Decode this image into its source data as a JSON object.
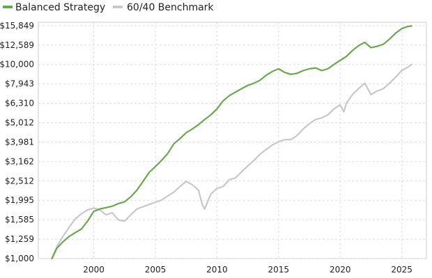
{
  "chart_data": {
    "type": "line",
    "title": "",
    "xlabel": "",
    "ylabel": "",
    "y_scale": "log",
    "ylim": [
      1000,
      16500
    ],
    "xlim": [
      1995.5,
      2027.0
    ],
    "grid": true,
    "legend_position": "top-left",
    "x_ticks": [
      2000,
      2005,
      2010,
      2015,
      2020,
      2025
    ],
    "x_tick_labels": [
      "2000",
      "2005",
      "2010",
      "2015",
      "2020",
      "2025"
    ],
    "y_ticks": [
      1000,
      1259,
      1585,
      1995,
      2512,
      3162,
      3981,
      5012,
      6310,
      7943,
      10000,
      12589,
      15849
    ],
    "y_tick_labels": [
      "$1,000",
      "$1,259",
      "$1,585",
      "$1,995",
      "$2,512",
      "$3,162",
      "$3,981",
      "$5,012",
      "$6,310",
      "$7,943",
      "$10,000",
      "$12,589",
      "$15,849"
    ],
    "series": [
      {
        "name": "Balanced Strategy",
        "color": "#6aa84f",
        "x": [
          1996.6,
          1997.0,
          1997.5,
          1998.0,
          1998.5,
          1999.0,
          1999.5,
          2000.0,
          2000.5,
          2001.0,
          2001.5,
          2002.0,
          2002.5,
          2003.0,
          2003.5,
          2004.0,
          2004.5,
          2005.0,
          2005.5,
          2006.0,
          2006.5,
          2007.0,
          2007.5,
          2008.0,
          2008.5,
          2009.0,
          2009.5,
          2010.0,
          2010.5,
          2011.0,
          2011.5,
          2012.0,
          2012.5,
          2013.0,
          2013.5,
          2014.0,
          2014.5,
          2015.0,
          2015.5,
          2016.0,
          2016.5,
          2017.0,
          2017.5,
          2018.0,
          2018.5,
          2019.0,
          2019.5,
          2020.0,
          2020.5,
          2021.0,
          2021.5,
          2022.0,
          2022.5,
          2023.0,
          2023.5,
          2024.0,
          2024.5,
          2025.0,
          2025.5,
          2025.8
        ],
        "values": [
          1000,
          1130,
          1220,
          1300,
          1360,
          1420,
          1560,
          1750,
          1800,
          1830,
          1860,
          1920,
          1960,
          2080,
          2250,
          2500,
          2780,
          2980,
          3200,
          3480,
          3900,
          4150,
          4450,
          4650,
          4900,
          5200,
          5500,
          5900,
          6500,
          6900,
          7200,
          7500,
          7800,
          8000,
          8300,
          8800,
          9200,
          9500,
          9100,
          8900,
          9000,
          9300,
          9500,
          9600,
          9300,
          9500,
          10000,
          10500,
          11000,
          11800,
          12500,
          13000,
          12200,
          12400,
          12700,
          13500,
          14500,
          15300,
          15700,
          15800
        ]
      },
      {
        "name": "60/40 Benchmark",
        "color": "#c8c8c8",
        "x": [
          1996.6,
          1997.0,
          1997.5,
          1998.0,
          1998.5,
          1999.0,
          1999.5,
          2000.0,
          2000.5,
          2001.0,
          2001.5,
          2002.0,
          2002.5,
          2003.0,
          2003.5,
          2004.0,
          2004.5,
          2005.0,
          2005.5,
          2006.0,
          2006.5,
          2007.0,
          2007.5,
          2008.0,
          2008.5,
          2008.8,
          2009.0,
          2009.3,
          2009.5,
          2010.0,
          2010.5,
          2011.0,
          2011.5,
          2012.0,
          2012.5,
          2013.0,
          2013.5,
          2014.0,
          2014.5,
          2015.0,
          2015.5,
          2016.0,
          2016.5,
          2017.0,
          2017.5,
          2018.0,
          2018.5,
          2019.0,
          2019.5,
          2020.0,
          2020.3,
          2020.5,
          2021.0,
          2021.5,
          2022.0,
          2022.5,
          2023.0,
          2023.5,
          2024.0,
          2024.5,
          2025.0,
          2025.5,
          2025.8
        ],
        "values": [
          1000,
          1150,
          1300,
          1450,
          1600,
          1700,
          1780,
          1820,
          1780,
          1680,
          1720,
          1580,
          1560,
          1680,
          1800,
          1850,
          1900,
          1950,
          2000,
          2100,
          2200,
          2350,
          2500,
          2400,
          2250,
          1900,
          1800,
          2000,
          2150,
          2300,
          2350,
          2550,
          2600,
          2800,
          3000,
          3200,
          3450,
          3650,
          3850,
          4000,
          4100,
          4100,
          4300,
          4650,
          4950,
          5200,
          5300,
          5500,
          5900,
          6200,
          5700,
          6300,
          7000,
          7500,
          8000,
          7000,
          7300,
          7500,
          8000,
          8600,
          9300,
          9700,
          10000
        ]
      }
    ]
  }
}
